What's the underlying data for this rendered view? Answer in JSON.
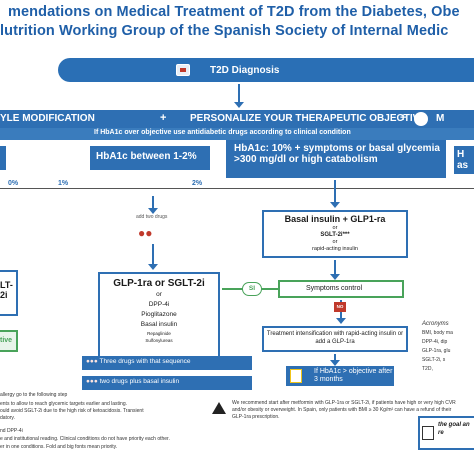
{
  "title": {
    "line1": "mendations on Medical Treatment of T2D from the Diabetes, Obe",
    "line2": "lutrition Working Group of the Spanish Society of Internal Medic"
  },
  "diagnosis": {
    "label": "T2D Diagnosis"
  },
  "therapy_bar": {
    "lifestyle": "YLE MODIFICATION",
    "plus": "+",
    "personalize": "PERSONALIZE YOUR THERAPEUTIC OBJECTIVE",
    "right_fragment": "M",
    "subtitle": "If HbA1c over objective use antidiabetic drugs according to clinical condition"
  },
  "hba1c_boxes": {
    "mid": "HbA1c between 1-2%",
    "high": "HbA1c: 10% + symptoms or basal glycemia >300 mg/dl or high catabolism",
    "right": "H as"
  },
  "scale": {
    "ticks": [
      "0%",
      "1%",
      "2%"
    ]
  },
  "add_two_drugs": "add two drugs",
  "basal_box": {
    "title": "Basal insulin + GLP1-ra",
    "or1": "or",
    "sglt": "SGLT-2i***",
    "or2": "or",
    "rapid": "rapid-acting insulin"
  },
  "glp_box": {
    "title": "GLP-1ra or SGLT-2i",
    "or": "or",
    "dpp": "DPP-4i",
    "pio": "Pioglitazone",
    "basal": "Basal insulin",
    "repa": "Repaglinide",
    "sulfo": "Sulfonylureas"
  },
  "left_boxes": {
    "sglt": "LT-2i",
    "objective": "tive"
  },
  "si_label": "SI",
  "symptoms": "Symptoms control",
  "no_label": "NO",
  "intensification": "Treatment intensification with rapid-acting insulin or add a GLP-1ra",
  "drug_rows": {
    "row1": "Three drugs with that sequence",
    "or": "or",
    "row2": "two drugs plus basal insulin"
  },
  "hba1c_reeval": "If HbA1c > objective after 3 months",
  "recommend": "We recommend start after metformin with GLP-1ra or SGLT-2i, if patients have high or very high CVR and/or obesity or overweight. In Spain, only patients with BMI ≥ 30 Kg/m² can have a refund of their GLP-1ra prescription.",
  "footer": {
    "f1": "allergy go to the following step",
    "f2": "ents to allow to reach glycemic targets earlier and lasting.",
    "f3": "ould avoid SGLT-2i due to the high risk of ketoacidosis. Transient",
    "f3b": "datory.",
    "f4": "nd DPP-4i",
    "f5": "e and institutional reading. Clinical conditions do not have priority each other.",
    "f6": "er in one conditions. Fold and big fonts mean priority."
  },
  "acronyms": {
    "heading": "Acronyms",
    "items": [
      "BMI, body ma",
      "DPP-4i, dip",
      "GLP-1ra, glu",
      "SGLT-2i, s",
      "T2D,"
    ]
  },
  "goal": {
    "line1": "the goal an",
    "line2": "re"
  },
  "colors": {
    "brand_blue": "#2e6fb3",
    "green": "#49a35a",
    "red": "#c0392b"
  }
}
